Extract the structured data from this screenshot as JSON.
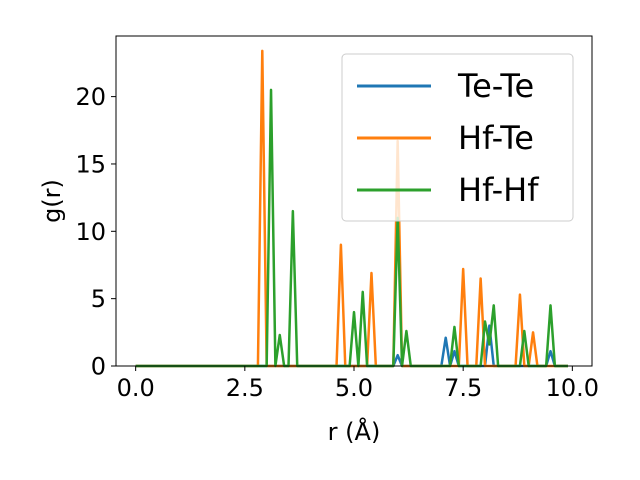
{
  "chart_data": {
    "type": "line",
    "xlabel": "r (Å)",
    "ylabel": "g(r)",
    "xlim": [
      -0.45,
      10.45
    ],
    "ylim": [
      0,
      24.5
    ],
    "xticks": [
      0.0,
      2.5,
      5.0,
      7.5,
      10.0
    ],
    "xtick_labels": [
      "0.0",
      "2.5",
      "5.0",
      "7.5",
      "10.0"
    ],
    "yticks": [
      0,
      5,
      10,
      15,
      20
    ],
    "ytick_labels": [
      "0",
      "5",
      "10",
      "15",
      "20"
    ],
    "grid": false,
    "legend_position": "top-right",
    "series": [
      {
        "name": "Te-Te",
        "color": "#1f77b4",
        "x": [
          0,
          5.9,
          6.0,
          6.1,
          7.0,
          7.1,
          7.2,
          7.3,
          7.4,
          8.0,
          8.1,
          8.2,
          9.4,
          9.5,
          9.6,
          9.9
        ],
        "y": [
          0,
          0,
          0.8,
          0,
          0,
          2.1,
          0,
          1.1,
          0,
          0,
          3.0,
          0,
          0,
          1.1,
          0,
          0
        ]
      },
      {
        "name": "Hf-Te",
        "color": "#ff7f0e",
        "x": [
          0,
          2.8,
          2.9,
          3.0,
          4.6,
          4.7,
          4.8,
          5.3,
          5.4,
          5.5,
          5.9,
          6.0,
          6.1,
          7.4,
          7.5,
          7.6,
          7.8,
          7.9,
          8.0,
          8.7,
          8.8,
          8.9,
          9.0,
          9.1,
          9.2,
          9.9
        ],
        "y": [
          0,
          0,
          23.4,
          0,
          0,
          9.0,
          0,
          0,
          6.9,
          0,
          0,
          16.7,
          0,
          0,
          7.2,
          0,
          0,
          6.5,
          0,
          0,
          5.3,
          0,
          0,
          2.5,
          0,
          0
        ]
      },
      {
        "name": "Hf-Hf",
        "color": "#2ca02c",
        "x": [
          0,
          3.0,
          3.1,
          3.2,
          3.3,
          3.4,
          3.5,
          3.6,
          3.7,
          4.9,
          5.0,
          5.1,
          5.2,
          5.3,
          5.9,
          6.0,
          6.1,
          6.2,
          6.3,
          7.2,
          7.3,
          7.4,
          7.9,
          8.0,
          8.1,
          8.2,
          8.3,
          8.8,
          8.9,
          9.0,
          9.4,
          9.5,
          9.6,
          9.9
        ],
        "y": [
          0,
          0,
          20.5,
          0,
          2.3,
          0,
          0,
          11.5,
          0,
          0,
          4.0,
          0,
          5.5,
          0,
          0,
          11.0,
          0,
          2.6,
          0,
          0,
          2.9,
          0,
          0,
          3.3,
          1.6,
          4.5,
          0,
          0,
          2.6,
          0,
          0,
          4.5,
          0,
          0
        ]
      }
    ]
  }
}
